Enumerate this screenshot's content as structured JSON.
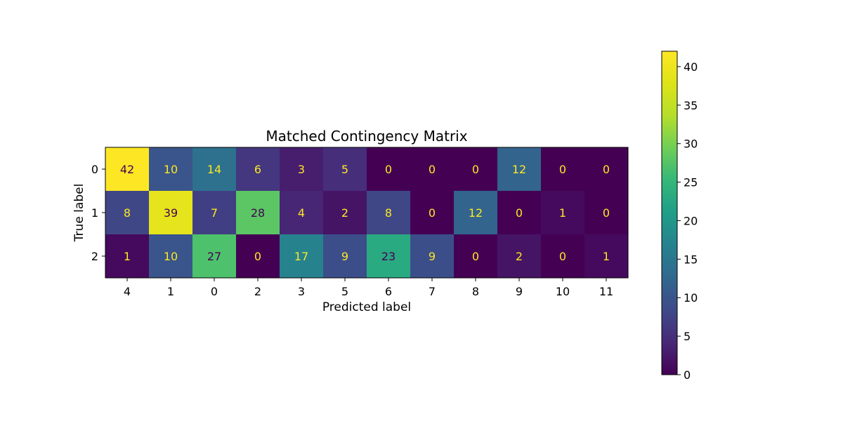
{
  "chart_data": {
    "type": "heatmap",
    "title": "Matched Contingency Matrix",
    "xlabel": "Predicted label",
    "ylabel": "True label",
    "x_categories": [
      "4",
      "1",
      "0",
      "2",
      "3",
      "5",
      "6",
      "7",
      "8",
      "9",
      "10",
      "11"
    ],
    "y_categories": [
      "0",
      "1",
      "2"
    ],
    "values": [
      [
        42,
        10,
        14,
        6,
        3,
        5,
        0,
        0,
        0,
        12,
        0,
        0
      ],
      [
        8,
        39,
        7,
        28,
        4,
        2,
        8,
        0,
        12,
        0,
        1,
        0
      ],
      [
        1,
        10,
        27,
        0,
        17,
        9,
        23,
        9,
        0,
        2,
        0,
        1
      ]
    ],
    "colormap": "viridis",
    "value_range": [
      0,
      42
    ],
    "colorbar_ticks": [
      0,
      5,
      10,
      15,
      20,
      25,
      30,
      35,
      40
    ],
    "annotation_colors": {
      "on_dark": "#fde725",
      "on_light": "#440154"
    },
    "grid": false
  }
}
